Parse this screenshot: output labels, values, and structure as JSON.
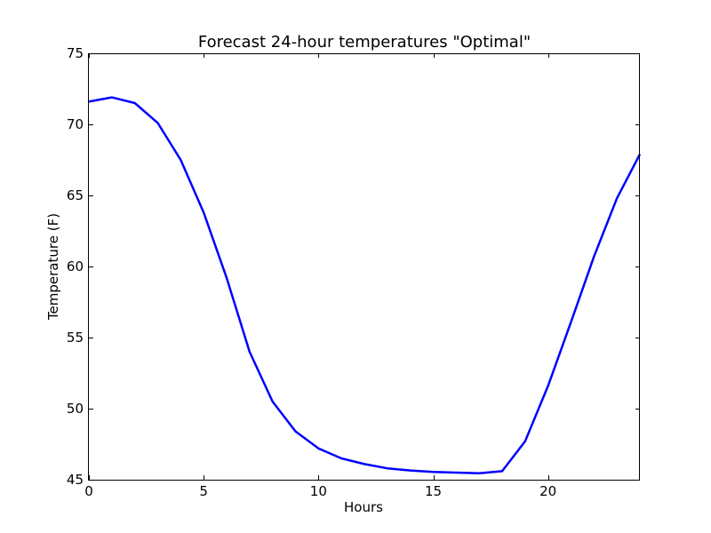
{
  "chart_data": {
    "type": "line",
    "title": "Forecast 24-hour temperatures \"Optimal\"",
    "xlabel": "Hours",
    "ylabel": "Temperature (F)",
    "xlim": [
      0,
      24
    ],
    "ylim": [
      45,
      75
    ],
    "xticks": [
      0,
      5,
      10,
      15,
      20
    ],
    "yticks": [
      45,
      50,
      55,
      60,
      65,
      70,
      75
    ],
    "grid": false,
    "series": [
      {
        "color": "#0000ff",
        "x": [
          0,
          1,
          2,
          3,
          4,
          5,
          6,
          7,
          8,
          9,
          10,
          11,
          12,
          13,
          14,
          15,
          16,
          17,
          18,
          19,
          20,
          21,
          22,
          23,
          24
        ],
        "y": [
          71.6,
          71.9,
          71.5,
          70.1,
          67.5,
          63.8,
          59.2,
          54.0,
          50.5,
          48.4,
          47.2,
          46.5,
          46.1,
          45.8,
          45.65,
          45.55,
          45.5,
          45.45,
          45.6,
          47.7,
          51.6,
          56.1,
          60.7,
          64.8,
          67.9
        ]
      }
    ]
  }
}
